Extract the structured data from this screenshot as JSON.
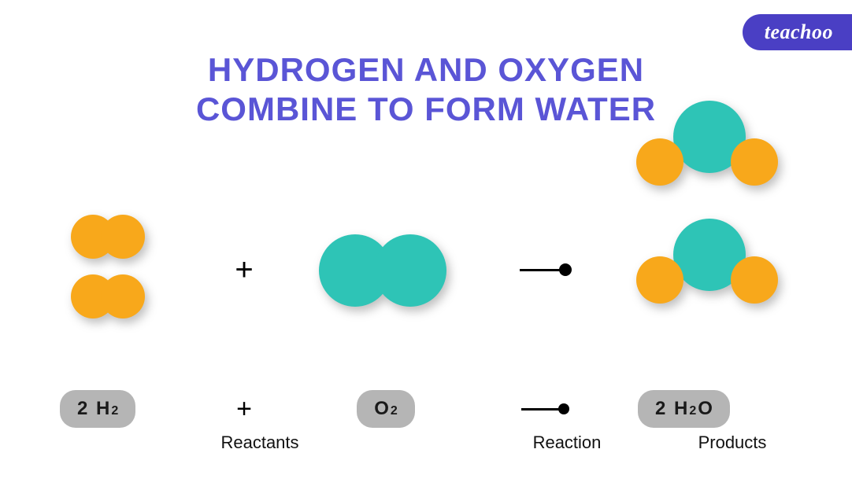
{
  "brand": "teachoo",
  "title_line1": "HYDROGEN AND OXYGEN",
  "title_line2": "COMBINE TO FORM WATER",
  "colors": {
    "title": "#5a55d6",
    "brand_bg": "#4a3fc4",
    "hydrogen": "#f8a81b",
    "oxygen": "#2ec4b6",
    "pill_bg": "#b5b5b5",
    "text": "#111111",
    "shadow": "rgba(0,0,0,0.25)"
  },
  "diagram": {
    "type": "infographic",
    "hydrogen_atom_radius": 28,
    "oxygen_atom_radius": 46,
    "water_oxygen_radius": 46,
    "water_hydrogen_radius": 30,
    "plus_symbol": "+",
    "arrow": {
      "line_width": 60,
      "dot_radius": 8
    }
  },
  "formulas": {
    "h2": {
      "coeff": "2",
      "sym": "H",
      "sub": "2"
    },
    "o2": {
      "coeff": "",
      "sym": "O",
      "sub": "2"
    },
    "h2o": {
      "coeff": "2",
      "sym1": "H",
      "sub1": "2",
      "sym2": "O"
    }
  },
  "labels": {
    "reactants": "Reactants",
    "reaction": "Reaction",
    "products": "Products"
  }
}
